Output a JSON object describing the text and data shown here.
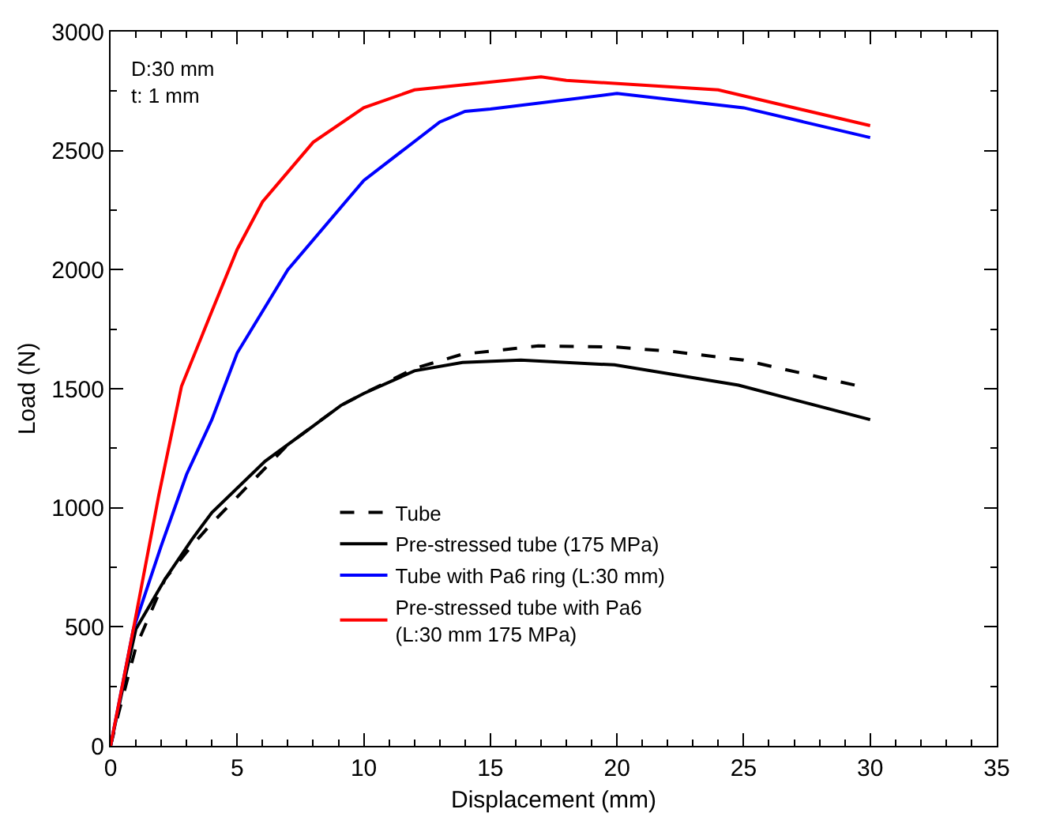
{
  "chart_data": {
    "type": "line",
    "xlabel": "Displacement (mm)",
    "ylabel": "Load (N)",
    "xlim": [
      0,
      35
    ],
    "ylim": [
      0,
      3000
    ],
    "xticks": [
      0,
      5,
      10,
      15,
      20,
      25,
      30,
      35
    ],
    "yticks": [
      0,
      500,
      1000,
      1500,
      2000,
      2500,
      3000
    ],
    "grid": false,
    "legend": "bottom",
    "marker": "none",
    "annotations": [
      "D:30 mm\nt: 1 mm"
    ],
    "series": [
      {
        "name": "Tube",
        "color": "#000000",
        "line_style": "dashed",
        "x": [
          0,
          0.3,
          1,
          2.15,
          3.2,
          4,
          7,
          9.1,
          10,
          12,
          13.9,
          16.9,
          20,
          22.3,
          25,
          29.4
        ],
        "values": [
          0,
          130,
          415,
          700,
          840,
          935,
          1265,
          1430,
          1480,
          1585,
          1645,
          1680,
          1675,
          1655,
          1620,
          1515
        ]
      },
      {
        "name": "Pre-stressed tube (175 MPa)",
        "color": "#000000",
        "line_style": "solid",
        "x": [
          0,
          0.5,
          1,
          2.15,
          3.2,
          4,
          6.1,
          7.9,
          9.1,
          10,
          12,
          13.9,
          16.2,
          19.9,
          24.8,
          30
        ],
        "values": [
          0,
          250,
          490,
          700,
          865,
          980,
          1195,
          1335,
          1430,
          1480,
          1575,
          1610,
          1620,
          1600,
          1515,
          1370
        ]
      },
      {
        "name": "Tube with Pa6 ring (L:30 mm)",
        "color": "#0000ff",
        "line_style": "solid",
        "x": [
          0,
          0.9,
          2,
          3,
          4,
          5,
          7,
          10,
          13,
          14,
          15,
          20,
          25,
          30
        ],
        "values": [
          0,
          490,
          840,
          1140,
          1370,
          1650,
          2000,
          2375,
          2620,
          2665,
          2675,
          2740,
          2680,
          2555
        ]
      },
      {
        "name": "Pre-stressed tube with Pa6\n(L:30 mm 175 MPa)",
        "color": "#ff0000",
        "line_style": "solid",
        "x": [
          0,
          0.9,
          1.9,
          2.8,
          4,
          5,
          6,
          8,
          10,
          12,
          17,
          18,
          24,
          30
        ],
        "values": [
          0,
          490,
          1050,
          1510,
          1825,
          2085,
          2285,
          2535,
          2680,
          2755,
          2810,
          2795,
          2755,
          2605
        ]
      }
    ]
  }
}
